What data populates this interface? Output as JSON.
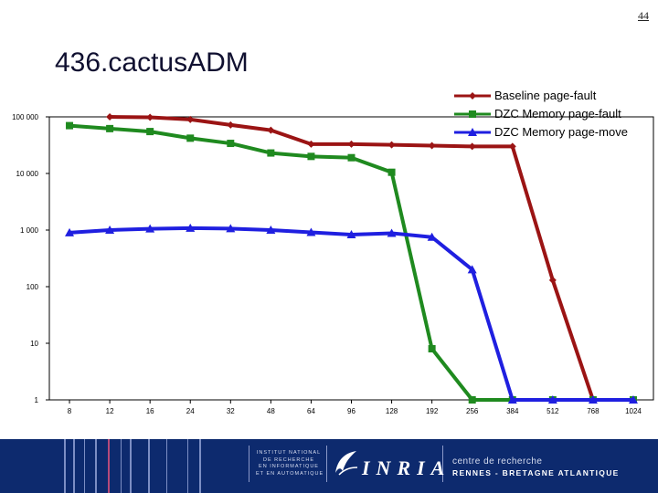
{
  "page_number": "44",
  "slide_title": "436.cactusADM",
  "chart_data": {
    "type": "line",
    "title": "",
    "xlabel": "",
    "ylabel": "",
    "yscale": "log",
    "ylim": [
      1,
      100000
    ],
    "grid": false,
    "legend_position": "top-right",
    "categories": [
      "8",
      "12",
      "16",
      "24",
      "32",
      "48",
      "64",
      "96",
      "128",
      "192",
      "256",
      "384",
      "512",
      "768",
      "1024"
    ],
    "y_ticks": [
      {
        "value": 100000,
        "label": "100 000"
      },
      {
        "value": 10000,
        "label": "10 000"
      },
      {
        "value": 1000,
        "label": "1 000"
      },
      {
        "value": 100,
        "label": "100"
      },
      {
        "value": 10,
        "label": "10"
      },
      {
        "value": 1,
        "label": "1"
      }
    ],
    "series": [
      {
        "name": "Baseline page-fault",
        "color": "#9b1414",
        "marker": "diamond",
        "values": [
          null,
          100000,
          98000,
          90000,
          72000,
          58000,
          33000,
          33000,
          32000,
          31000,
          30000,
          30000,
          130,
          1,
          1
        ]
      },
      {
        "name": "DZC Memory page-fault",
        "color": "#1f8a1f",
        "marker": "square",
        "values": [
          70000,
          62000,
          55000,
          42000,
          34000,
          23000,
          20000,
          19000,
          10500,
          8,
          1,
          1,
          1,
          1,
          1
        ]
      },
      {
        "name": "DZC Memory page-move",
        "color": "#1f1fe0",
        "marker": "triangle",
        "values": [
          900,
          1000,
          1050,
          1080,
          1060,
          1000,
          910,
          830,
          880,
          750,
          200,
          1,
          1,
          1,
          1
        ]
      }
    ]
  },
  "footer": {
    "institute_lines": [
      "INSTITUT NATIONAL",
      "DE RECHERCHE",
      "EN INFORMATIQUE",
      "ET EN AUTOMATIQUE"
    ],
    "logo_text": "INRIA",
    "centre_line1": "centre de recherche",
    "centre_line2": "RENNES - BRETAGNE ATLANTIQUE"
  }
}
